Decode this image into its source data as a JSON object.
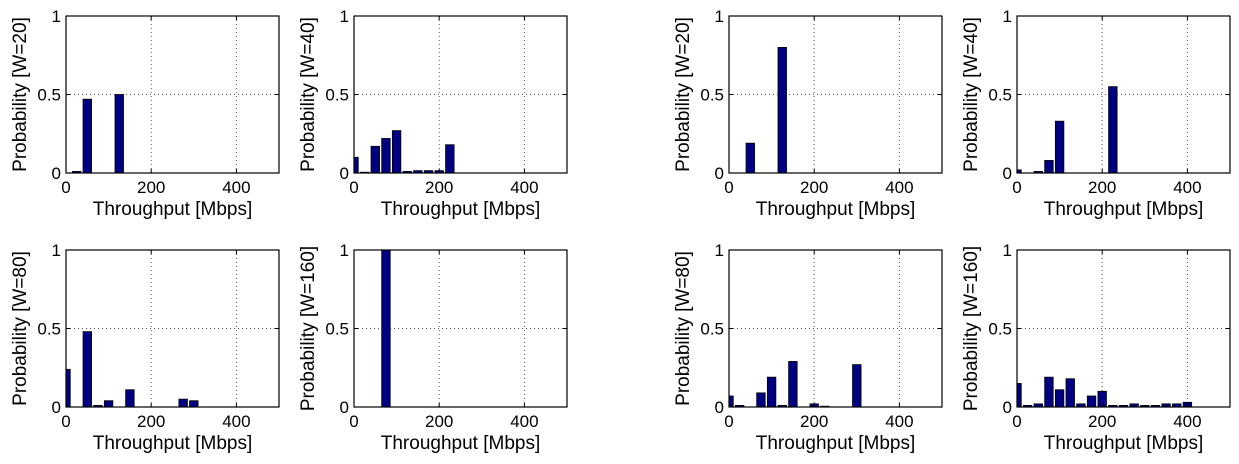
{
  "chart_data": [
    {
      "type": "bar",
      "xlabel": "Throughput [Mbps]",
      "ylabel": "Probability [W=20]",
      "xlim": [
        0,
        500
      ],
      "ylim": [
        0,
        1
      ],
      "xticks": [
        "0",
        "200",
        "400"
      ],
      "yticks": [
        "0",
        "0.5",
        "1"
      ],
      "grid": true,
      "color": "#000080",
      "x": [
        25,
        50,
        125
      ],
      "values": [
        0.01,
        0.47,
        0.5
      ]
    },
    {
      "type": "bar",
      "xlabel": "Throughput [Mbps]",
      "ylabel": "Probability [W=40]",
      "xlim": [
        0,
        500
      ],
      "ylim": [
        0,
        1
      ],
      "xticks": [
        "0",
        "200",
        "400"
      ],
      "yticks": [
        "0",
        "0.5",
        "1"
      ],
      "grid": true,
      "color": "#000080",
      "x": [
        0,
        25,
        50,
        75,
        100,
        125,
        150,
        175,
        200,
        225
      ],
      "values": [
        0.1,
        0.005,
        0.17,
        0.22,
        0.27,
        0.01,
        0.015,
        0.015,
        0.015,
        0.18
      ]
    },
    {
      "type": "bar",
      "xlabel": "Throughput [Mbps]",
      "ylabel": "Probability [W=80]",
      "xlim": [
        0,
        500
      ],
      "ylim": [
        0,
        1
      ],
      "xticks": [
        "0",
        "200",
        "400"
      ],
      "yticks": [
        "0",
        "0.5",
        "1"
      ],
      "grid": true,
      "color": "#000080",
      "x": [
        0,
        50,
        75,
        100,
        150,
        275,
        300
      ],
      "values": [
        0.24,
        0.48,
        0.01,
        0.04,
        0.11,
        0.05,
        0.04
      ]
    },
    {
      "type": "bar",
      "xlabel": "Throughput [Mbps]",
      "ylabel": "Probability [W=160]",
      "xlim": [
        0,
        500
      ],
      "ylim": [
        0,
        1
      ],
      "xticks": [
        "0",
        "200",
        "400"
      ],
      "yticks": [
        "0",
        "0.5",
        "1"
      ],
      "grid": true,
      "color": "#000080",
      "x": [
        75
      ],
      "values": [
        1.0
      ]
    },
    {
      "type": "bar",
      "xlabel": "Throughput [Mbps]",
      "ylabel": "Probability [W=20]",
      "xlim": [
        0,
        500
      ],
      "ylim": [
        0,
        1
      ],
      "xticks": [
        "0",
        "200",
        "400"
      ],
      "yticks": [
        "0",
        "0.5",
        "1"
      ],
      "grid": true,
      "color": "#000080",
      "x": [
        50,
        125
      ],
      "values": [
        0.19,
        0.8
      ]
    },
    {
      "type": "bar",
      "xlabel": "Throughput [Mbps]",
      "ylabel": "Probability [W=40]",
      "xlim": [
        0,
        500
      ],
      "ylim": [
        0,
        1
      ],
      "xticks": [
        "0",
        "200",
        "400"
      ],
      "yticks": [
        "0",
        "0.5",
        "1"
      ],
      "grid": true,
      "color": "#000080",
      "x": [
        0,
        50,
        75,
        100,
        225
      ],
      "values": [
        0.02,
        0.01,
        0.08,
        0.33,
        0.55
      ]
    },
    {
      "type": "bar",
      "xlabel": "Throughput [Mbps]",
      "ylabel": "Probability [W=80]",
      "xlim": [
        0,
        500
      ],
      "ylim": [
        0,
        1
      ],
      "xticks": [
        "0",
        "200",
        "400"
      ],
      "yticks": [
        "0",
        "0.5",
        "1"
      ],
      "grid": true,
      "color": "#000080",
      "x": [
        0,
        25,
        75,
        100,
        125,
        150,
        200,
        225,
        300
      ],
      "values": [
        0.07,
        0.01,
        0.09,
        0.19,
        0.01,
        0.29,
        0.02,
        0.005,
        0.27
      ]
    },
    {
      "type": "bar",
      "xlabel": "Throughput [Mbps]",
      "ylabel": "Probability [W=160]",
      "xlim": [
        0,
        500
      ],
      "ylim": [
        0,
        1
      ],
      "xticks": [
        "0",
        "200",
        "400"
      ],
      "yticks": [
        "0",
        "0.5",
        "1"
      ],
      "grid": true,
      "color": "#000080",
      "x": [
        0,
        25,
        50,
        75,
        100,
        125,
        150,
        175,
        200,
        225,
        250,
        275,
        300,
        325,
        350,
        375,
        400
      ],
      "values": [
        0.15,
        0.01,
        0.02,
        0.19,
        0.11,
        0.18,
        0.02,
        0.07,
        0.1,
        0.01,
        0.01,
        0.02,
        0.01,
        0.01,
        0.02,
        0.02,
        0.03
      ]
    }
  ]
}
